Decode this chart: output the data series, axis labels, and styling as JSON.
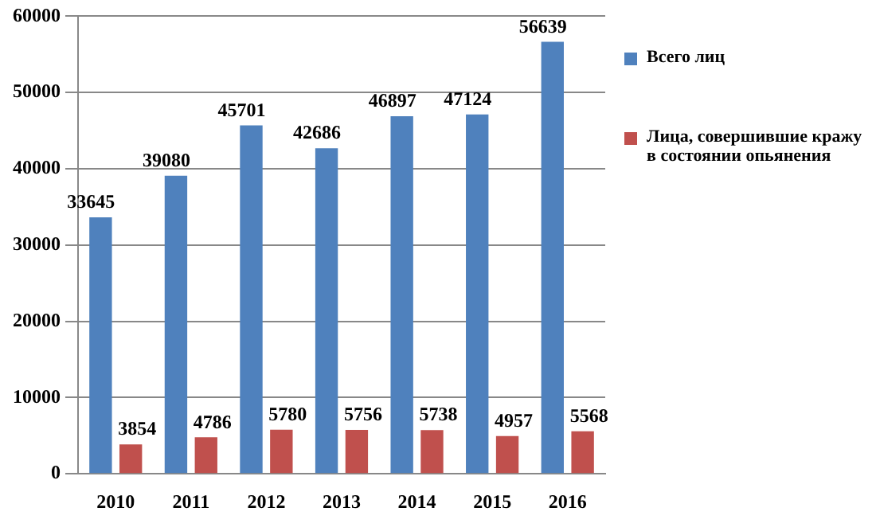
{
  "chart_data": {
    "type": "bar",
    "categories": [
      "2010",
      "2011",
      "2012",
      "2013",
      "2014",
      "2015",
      "2016"
    ],
    "series": [
      {
        "name": "Всего лиц",
        "color": "#4f81bd",
        "values": [
          33645,
          39080,
          45701,
          42686,
          46897,
          47124,
          56639
        ]
      },
      {
        "name": "Лица, совершившие кражу в состоянии опьянения",
        "color": "#c0504d",
        "values": [
          3854,
          4786,
          5780,
          5756,
          5738,
          4957,
          5568
        ]
      }
    ],
    "ylim": [
      0,
      60000
    ],
    "yticks": [
      0,
      10000,
      20000,
      30000,
      40000,
      50000,
      60000
    ],
    "grid": "y",
    "legend": "right",
    "data_labels": true
  }
}
